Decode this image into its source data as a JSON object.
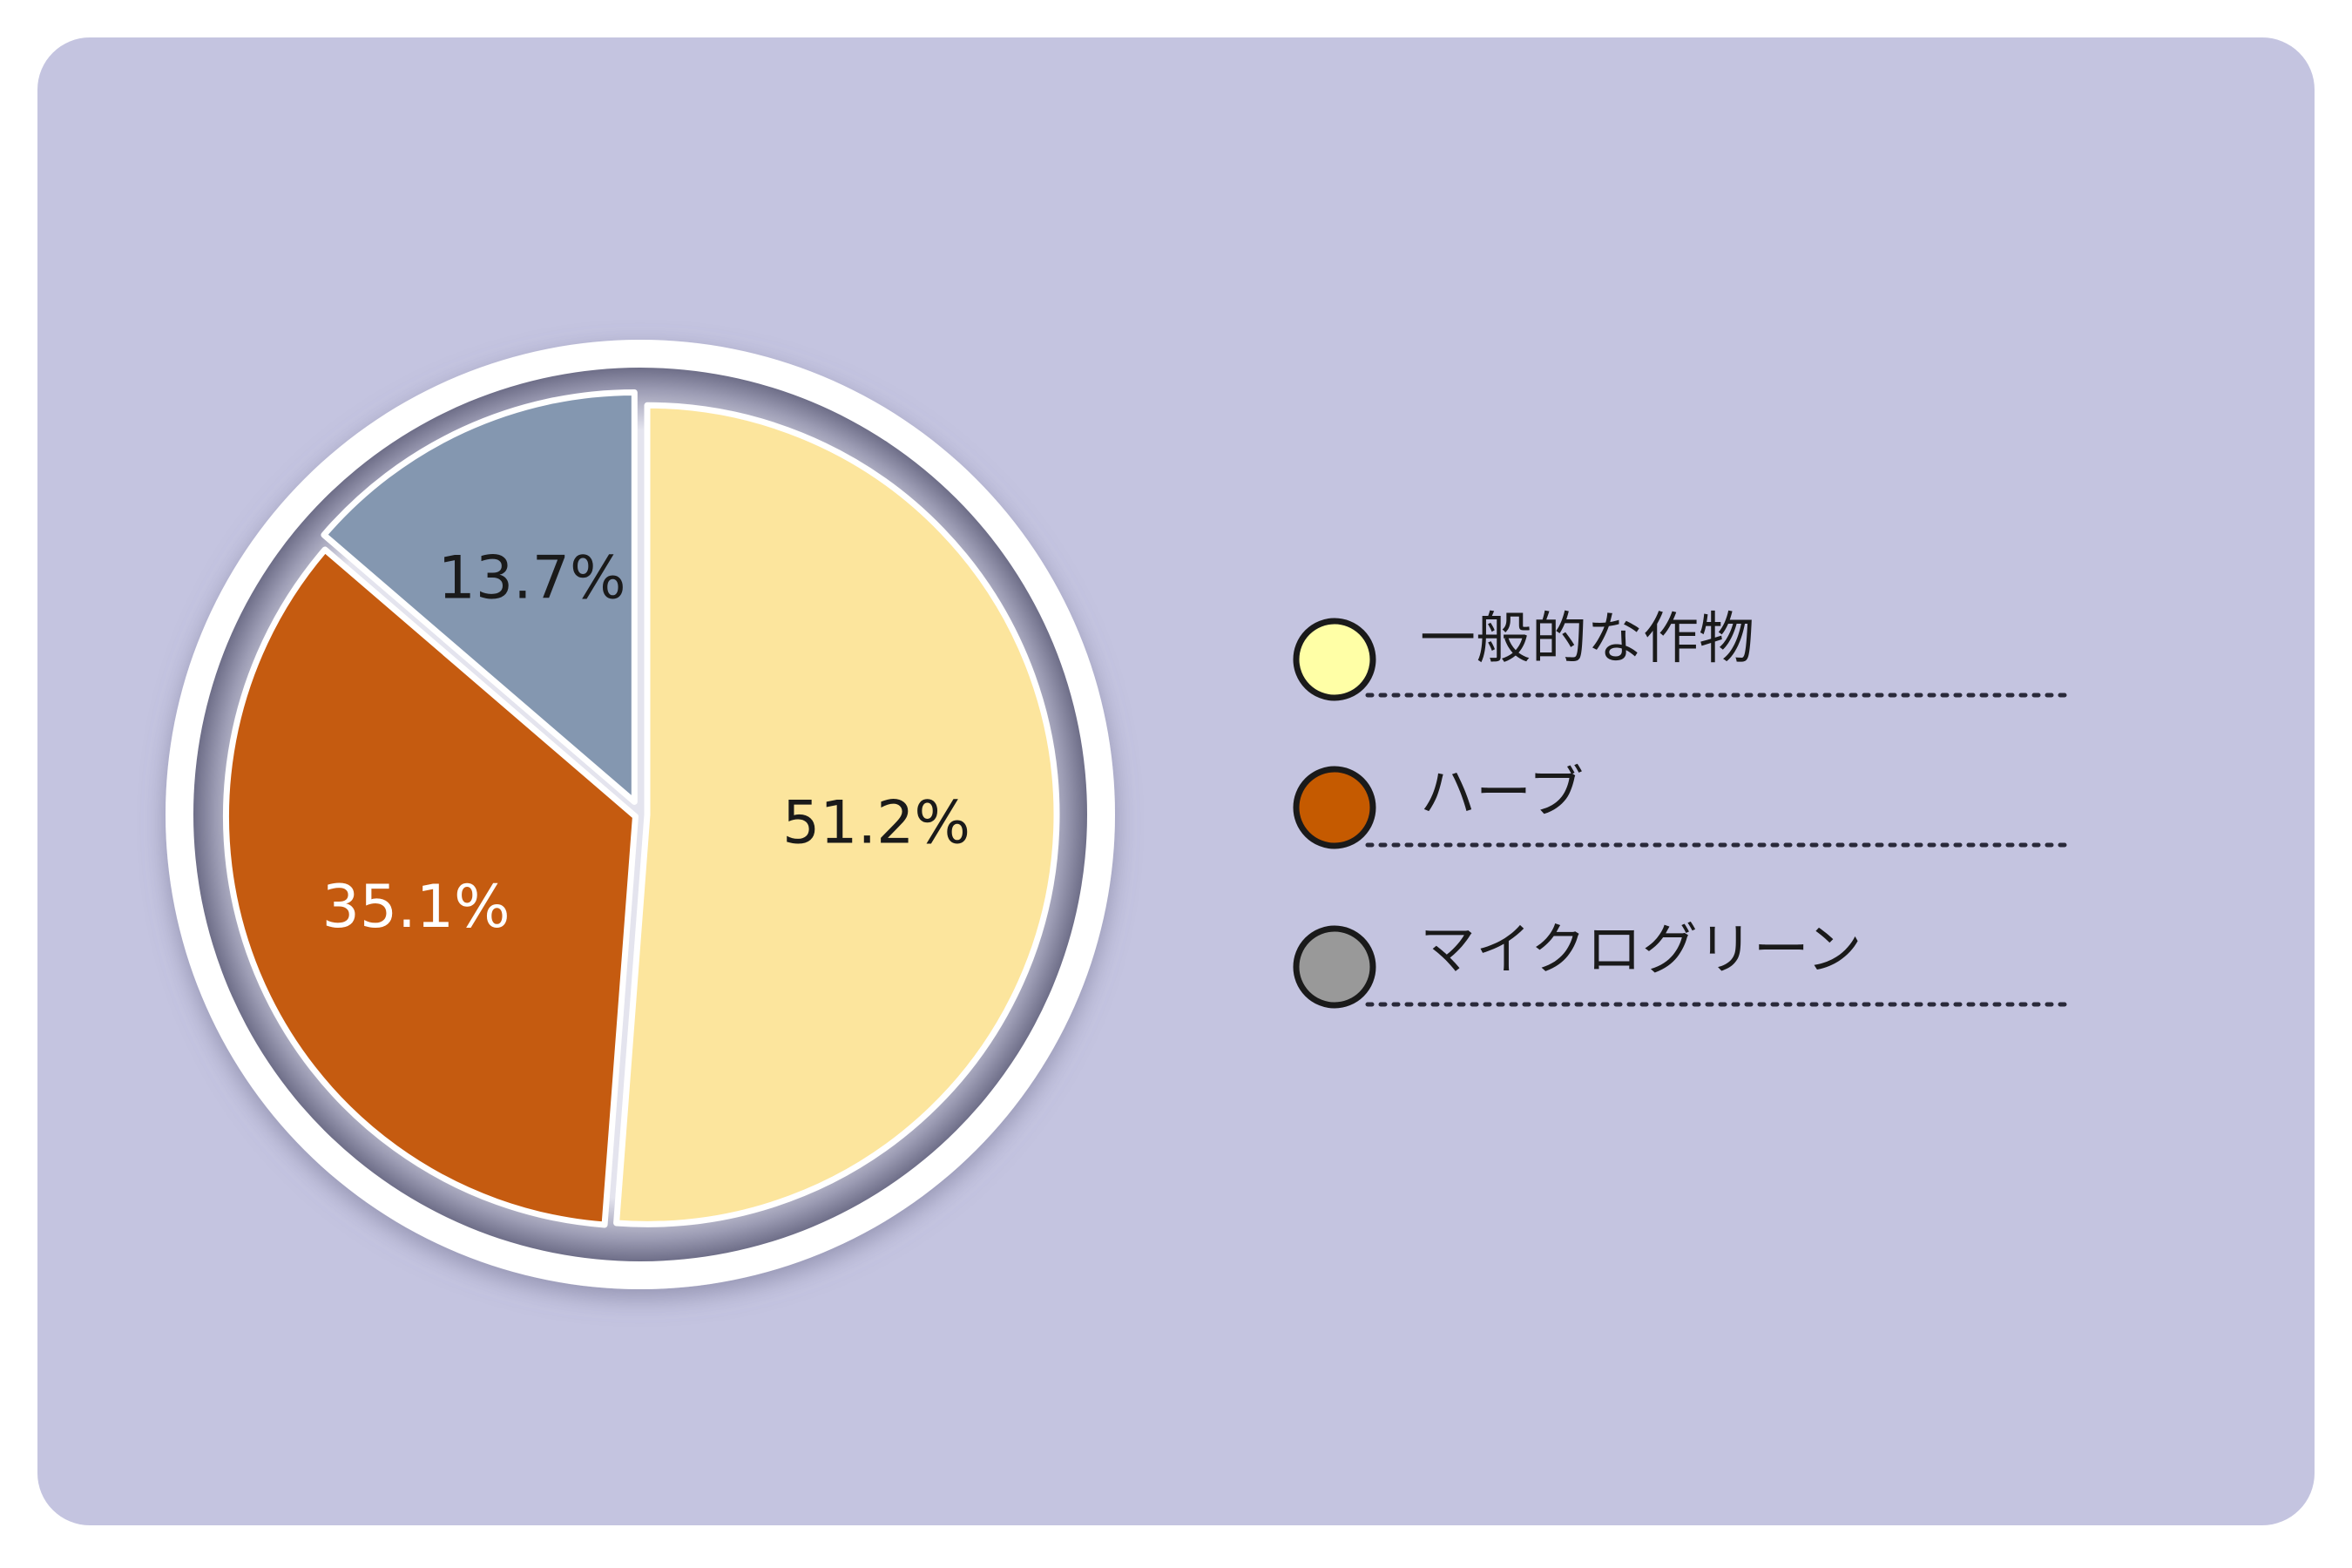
{
  "chart_data": {
    "type": "pie",
    "start_angle_deg": 0,
    "direction": "clockwise",
    "slices": [
      {
        "label": "一般的な作物",
        "value": 51.2,
        "value_label": "51.2%",
        "color": "#fce59d",
        "label_color": "#1a1a1a"
      },
      {
        "label": "ハーブ",
        "value": 35.1,
        "value_label": "35.1%",
        "color": "#c55b10",
        "label_color": "#ffffff"
      },
      {
        "label": "マイクログリーン",
        "value": 13.7,
        "value_label": "13.7%",
        "color": "#8497b0",
        "label_color": "#1a1a1a"
      }
    ],
    "legend": {
      "placement": "right",
      "items": [
        {
          "label": "一般的な作物",
          "marker_color": "#ffffa6"
        },
        {
          "label": "ハーブ",
          "marker_color": "#c55a00"
        },
        {
          "label": "マイクログリーン",
          "marker_color": "#999999"
        }
      ]
    },
    "colors": {
      "background": "#c4c4e0",
      "ring": "#ffffff",
      "separator": "#ffffff"
    }
  }
}
